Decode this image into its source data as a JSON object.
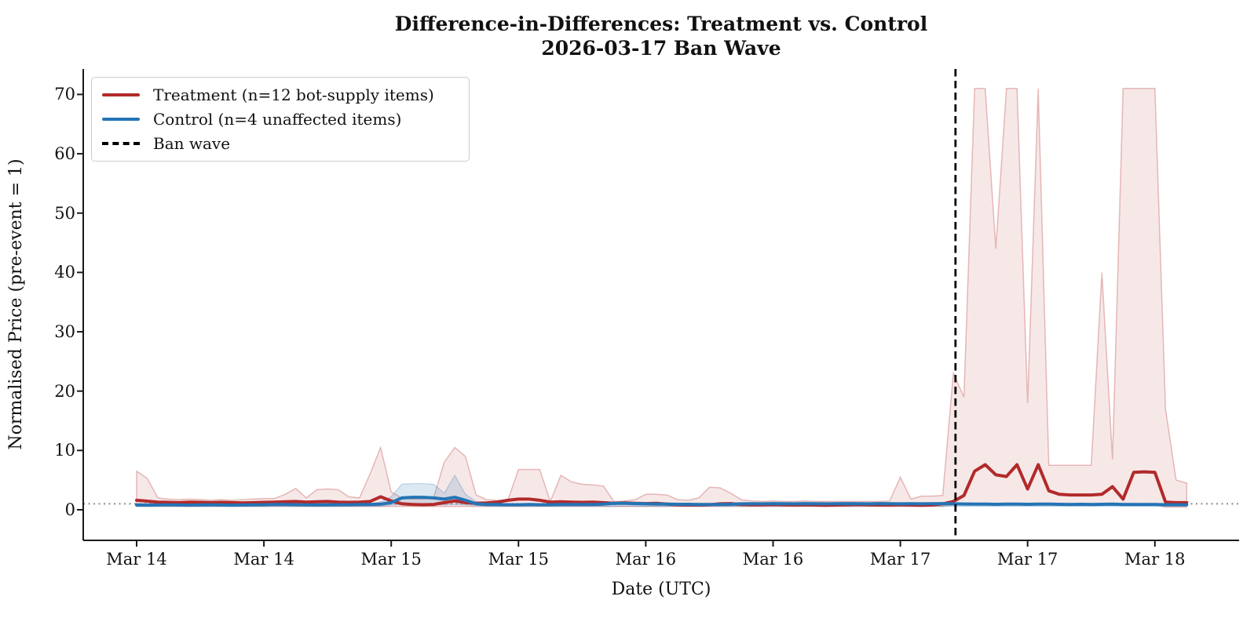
{
  "chart_data": {
    "type": "line",
    "title_line1": "Difference-in-Differences: Treatment vs. Control",
    "title_line2": "2026-03-17 Ban Wave",
    "xlabel": "Date (UTC)",
    "ylabel": "Normalised Price (pre-event = 1)",
    "legend": [
      {
        "label": "Treatment (n=12 bot-supply items)",
        "style": "solid",
        "color": "#b22a2a"
      },
      {
        "label": "Control (n=4 unaffected items)",
        "style": "solid",
        "color": "#2474b5"
      },
      {
        "label": "Ban wave",
        "style": "dashed",
        "color": "#000000"
      }
    ],
    "legend_position": "upper left",
    "grid": false,
    "x_unit": "hours since Mar 14 00:00 UTC",
    "xtick_hours": [
      0,
      12,
      24,
      36,
      48,
      60,
      72,
      84,
      96
    ],
    "xtick_labels": [
      "Mar 14",
      "Mar 14",
      "Mar 15",
      "Mar 15",
      "Mar 16",
      "Mar 16",
      "Mar 17",
      "Mar 17",
      "Mar 18"
    ],
    "ytick_values": [
      0,
      10,
      20,
      30,
      40,
      50,
      60,
      70
    ],
    "ytick_labels": [
      "0",
      "10",
      "20",
      "30",
      "40",
      "50",
      "60",
      "70"
    ],
    "ylim": [
      -5.2,
      74.3
    ],
    "xlim_hours": [
      -5,
      104
    ],
    "ref_line_y": 1,
    "ban_wave_hour": 77.2,
    "colors": {
      "treatment": "#b22a2a",
      "control": "#2474b5",
      "treatment_band_fill": "rgba(178,42,42,0.11)",
      "treatment_band_edge": "rgba(178,42,42,0.30)",
      "control_band_fill": "rgba(36,116,181,0.16)",
      "control_band_edge": "rgba(36,116,181,0.28)",
      "ban_line": "#000000",
      "ref_line": "#8a8a8a",
      "axis": "#1a1a1a"
    },
    "series": [
      {
        "name": "Treatment (n=12 bot-supply items)",
        "values": [
          1.6,
          1.45,
          1.3,
          1.25,
          1.2,
          1.3,
          1.25,
          1.2,
          1.25,
          1.2,
          1.15,
          1.2,
          1.25,
          1.3,
          1.35,
          1.4,
          1.3,
          1.35,
          1.4,
          1.3,
          1.25,
          1.3,
          1.4,
          2.2,
          1.5,
          1.0,
          0.9,
          0.85,
          0.9,
          1.2,
          1.5,
          1.2,
          1.1,
          1.15,
          1.3,
          1.6,
          1.8,
          1.8,
          1.6,
          1.3,
          1.35,
          1.3,
          1.25,
          1.3,
          1.2,
          1.1,
          1.15,
          1.1,
          1.05,
          1.1,
          0.95,
          0.85,
          0.8,
          0.8,
          0.85,
          1.0,
          1.05,
          0.9,
          0.85,
          0.85,
          0.9,
          0.85,
          0.8,
          0.85,
          0.8,
          0.75,
          0.8,
          0.85,
          0.9,
          0.85,
          0.8,
          0.8,
          0.85,
          0.8,
          0.75,
          0.8,
          1.0,
          1.4,
          2.4,
          6.5,
          7.6,
          5.9,
          5.6,
          7.6,
          3.5,
          7.6,
          3.2,
          2.6,
          2.5,
          2.5,
          2.5,
          2.6,
          3.9,
          1.8,
          6.3,
          6.4,
          6.3,
          1.3,
          1.2,
          1.2
        ],
        "band_hi": [
          6.5,
          5.3,
          2.0,
          1.8,
          1.7,
          1.8,
          1.7,
          1.6,
          1.7,
          1.6,
          1.7,
          1.8,
          1.9,
          1.9,
          2.6,
          3.6,
          2.0,
          3.4,
          3.5,
          3.4,
          2.2,
          2.0,
          6.0,
          10.5,
          3.0,
          2.0,
          1.8,
          1.8,
          2.0,
          8.0,
          10.5,
          9.0,
          2.5,
          1.7,
          1.6,
          1.6,
          6.8,
          6.8,
          6.8,
          1.4,
          5.8,
          4.7,
          4.3,
          4.2,
          4.0,
          1.4,
          1.5,
          1.7,
          2.6,
          2.6,
          2.5,
          1.7,
          1.6,
          2.0,
          3.8,
          3.7,
          2.8,
          1.7,
          1.5,
          1.4,
          1.5,
          1.4,
          1.4,
          1.5,
          1.4,
          1.4,
          1.4,
          1.4,
          1.4,
          1.4,
          1.4,
          1.5,
          5.5,
          1.8,
          2.3,
          2.3,
          2.4,
          23,
          19,
          71,
          71,
          44,
          71,
          71,
          18,
          71,
          7.5,
          7.5,
          7.5,
          7.5,
          7.5,
          40,
          8.5,
          71,
          71,
          71,
          71,
          17,
          5,
          4.5
        ],
        "band_lo": [
          0.55,
          0.55,
          0.55,
          0.55,
          0.55,
          0.55,
          0.55,
          0.55,
          0.55,
          0.55,
          0.55,
          0.55,
          0.55,
          0.55,
          0.55,
          0.55,
          0.55,
          0.55,
          0.55,
          0.55,
          0.55,
          0.55,
          0.55,
          0.55,
          0.55,
          0.55,
          0.55,
          0.55,
          0.55,
          0.55,
          0.55,
          0.55,
          0.55,
          0.55,
          0.55,
          0.55,
          0.55,
          0.55,
          0.55,
          0.55,
          0.55,
          0.55,
          0.55,
          0.55,
          0.55,
          0.55,
          0.55,
          0.55,
          0.55,
          0.55,
          0.55,
          0.55,
          0.55,
          0.55,
          0.55,
          0.55,
          0.55,
          0.55,
          0.55,
          0.55,
          0.55,
          0.55,
          0.55,
          0.55,
          0.55,
          0.55,
          0.55,
          0.55,
          0.55,
          0.55,
          0.55,
          0.55,
          0.55,
          0.55,
          0.55,
          0.55,
          0.55,
          0.85,
          0.85,
          0.85,
          0.85,
          0.85,
          0.85,
          0.85,
          0.85,
          0.85,
          0.85,
          0.85,
          0.85,
          0.85,
          0.85,
          0.85,
          0.85,
          0.85,
          0.85,
          0.85,
          0.85,
          0.45,
          0.45,
          0.45
        ]
      },
      {
        "name": "Control (n=4 unaffected items)",
        "values": [
          0.8,
          0.78,
          0.8,
          0.82,
          0.8,
          0.78,
          0.8,
          0.82,
          0.8,
          0.78,
          0.8,
          0.82,
          0.85,
          0.9,
          0.88,
          0.85,
          0.82,
          0.8,
          0.82,
          0.85,
          0.85,
          0.88,
          0.9,
          0.95,
          1.2,
          2.0,
          2.1,
          2.1,
          2.0,
          1.8,
          2.1,
          1.6,
          1.0,
          0.9,
          0.88,
          0.85,
          0.85,
          0.88,
          0.85,
          0.85,
          0.88,
          0.9,
          0.88,
          0.9,
          0.95,
          1.1,
          1.1,
          1.05,
          1.0,
          0.98,
          0.95,
          0.92,
          0.92,
          0.9,
          0.88,
          0.9,
          0.92,
          1.0,
          1.02,
          1.0,
          1.05,
          1.02,
          1.0,
          1.05,
          1.02,
          1.0,
          1.02,
          1.05,
          1.02,
          1.0,
          1.05,
          1.02,
          1.0,
          1.02,
          1.0,
          1.02,
          1.05,
          1.0,
          0.98,
          0.95,
          0.95,
          0.92,
          0.95,
          0.95,
          0.92,
          0.95,
          0.95,
          0.92,
          0.9,
          0.92,
          0.9,
          0.92,
          0.95,
          0.9,
          0.88,
          0.9,
          0.88,
          0.85,
          0.85,
          0.85
        ],
        "band_hi": [
          1.05,
          1.05,
          1.05,
          1.05,
          1.05,
          1.05,
          1.05,
          1.05,
          1.05,
          1.05,
          1.05,
          1.05,
          1.05,
          1.05,
          1.05,
          1.05,
          1.05,
          1.05,
          1.05,
          1.05,
          1.05,
          1.05,
          1.05,
          1.3,
          2.2,
          4.3,
          4.4,
          4.4,
          4.3,
          2.8,
          5.8,
          2.6,
          1.4,
          1.1,
          1.05,
          1.05,
          1.05,
          1.05,
          1.05,
          1.05,
          1.05,
          1.05,
          1.05,
          1.05,
          1.05,
          1.3,
          1.3,
          1.2,
          1.05,
          1.05,
          1.05,
          1.05,
          1.05,
          1.05,
          1.05,
          1.05,
          1.05,
          1.05,
          1.05,
          1.05,
          1.05,
          1.05,
          1.05,
          1.05,
          1.05,
          1.05,
          1.05,
          1.05,
          1.05,
          1.05,
          1.05,
          1.05,
          1.05,
          1.05,
          1.05,
          1.05,
          1.05,
          1.05,
          1.05,
          1.05,
          1.05,
          1.05,
          1.05,
          1.05,
          1.05,
          1.05,
          1.05,
          1.05,
          1.05,
          1.05,
          1.05,
          1.05,
          1.05,
          1.05,
          1.05,
          1.05,
          1.05,
          1.05,
          1.05,
          1.05
        ],
        "band_lo": [
          0.6,
          0.6,
          0.6,
          0.6,
          0.6,
          0.6,
          0.6,
          0.6,
          0.6,
          0.6,
          0.6,
          0.6,
          0.6,
          0.6,
          0.6,
          0.6,
          0.6,
          0.6,
          0.6,
          0.6,
          0.6,
          0.6,
          0.6,
          0.6,
          0.8,
          0.9,
          0.9,
          0.9,
          0.9,
          0.8,
          0.9,
          0.8,
          0.7,
          0.6,
          0.6,
          0.6,
          0.6,
          0.6,
          0.6,
          0.6,
          0.6,
          0.6,
          0.6,
          0.6,
          0.6,
          0.6,
          0.6,
          0.6,
          0.6,
          0.6,
          0.6,
          0.6,
          0.6,
          0.6,
          0.6,
          0.6,
          0.6,
          0.6,
          0.6,
          0.6,
          0.6,
          0.6,
          0.6,
          0.6,
          0.6,
          0.6,
          0.6,
          0.6,
          0.6,
          0.6,
          0.6,
          0.6,
          0.6,
          0.6,
          0.6,
          0.6,
          0.6,
          0.6,
          0.6,
          0.6,
          0.6,
          0.6,
          0.6,
          0.6,
          0.6,
          0.6,
          0.6,
          0.6,
          0.6,
          0.6,
          0.6,
          0.6,
          0.6,
          0.6,
          0.6,
          0.6,
          0.6,
          0.6,
          0.6,
          0.6
        ]
      }
    ]
  }
}
